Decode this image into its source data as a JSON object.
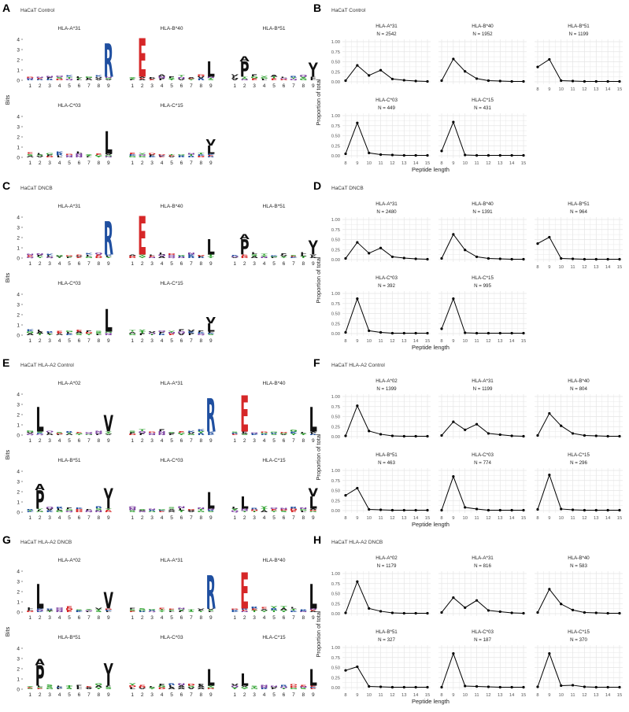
{
  "panels": [
    {
      "letter": "A",
      "title": "HaCaT Control"
    },
    {
      "letter": "B",
      "title": "HaCaT Control"
    },
    {
      "letter": "C",
      "title": "HaCaT DNCB"
    },
    {
      "letter": "D",
      "title": "HaCaT DNCB"
    },
    {
      "letter": "E",
      "title": "HaCaT HLA-A2 Control"
    },
    {
      "letter": "F",
      "title": "HaCaT HLA-A2 Control"
    },
    {
      "letter": "G",
      "title": "HaCaT HLA-A2 DNCB"
    },
    {
      "letter": "H",
      "title": "HaCaT HLA-A2 DNCB"
    }
  ],
  "logo_axis": {
    "ylabel": "Bits",
    "yticks": [
      0,
      1,
      2,
      3,
      4
    ],
    "xticks": [
      1,
      2,
      3,
      4,
      5,
      6,
      7,
      8,
      9
    ]
  },
  "line_axis": {
    "ylabel": "Proportion of total",
    "xlabel": "Peptide length",
    "yticks": [
      "0.00",
      "0.25",
      "0.50",
      "0.75",
      "1.00"
    ],
    "xticks": [
      8,
      9,
      10,
      11,
      12,
      13,
      14,
      15
    ]
  },
  "colors": {
    "acidic": "#d62728",
    "basic": "#1f4fa0",
    "hydrophobic": "#111111",
    "polar": "#2ca02c",
    "neutral": "#7b3fa0",
    "line": "#000000",
    "grid": "#e5e5e5"
  },
  "logos": [
    {
      "panel": "A",
      "row": 0,
      "col": 0,
      "allele": "HLA-A*31",
      "big": [
        {
          "pos": 9,
          "letter": "R",
          "bits": 3.3
        }
      ]
    },
    {
      "panel": "A",
      "row": 0,
      "col": 1,
      "allele": "HLA-B*40",
      "big": [
        {
          "pos": 2,
          "letter": "E",
          "bits": 3.8
        },
        {
          "pos": 9,
          "letter": "L",
          "bits": 1.5
        }
      ]
    },
    {
      "panel": "A",
      "row": 0,
      "col": 2,
      "allele": "HLA-B*51",
      "big": [
        {
          "pos": 2,
          "letter": "P",
          "bits": 1.5
        },
        {
          "pos": 2,
          "letter": "A",
          "bits": 0.5
        },
        {
          "pos": 9,
          "letter": "I",
          "bits": 0.7
        },
        {
          "pos": 9,
          "letter": "V",
          "bits": 0.7
        }
      ]
    },
    {
      "panel": "A",
      "row": 1,
      "col": 0,
      "allele": "HLA-C*03",
      "big": [
        {
          "pos": 9,
          "letter": "L",
          "bits": 2.2
        }
      ]
    },
    {
      "panel": "A",
      "row": 1,
      "col": 1,
      "allele": "HLA-C*15",
      "big": [
        {
          "pos": 9,
          "letter": "L",
          "bits": 0.8
        },
        {
          "pos": 9,
          "letter": "V",
          "bits": 0.6
        }
      ]
    },
    {
      "panel": "C",
      "row": 0,
      "col": 0,
      "allele": "HLA-A*31",
      "big": [
        {
          "pos": 9,
          "letter": "R",
          "bits": 3.3
        }
      ]
    },
    {
      "panel": "C",
      "row": 0,
      "col": 1,
      "allele": "HLA-B*40",
      "big": [
        {
          "pos": 2,
          "letter": "E",
          "bits": 3.8
        },
        {
          "pos": 9,
          "letter": "L",
          "bits": 1.5
        }
      ]
    },
    {
      "panel": "C",
      "row": 0,
      "col": 2,
      "allele": "HLA-B*51",
      "big": [
        {
          "pos": 2,
          "letter": "P",
          "bits": 1.5
        },
        {
          "pos": 2,
          "letter": "A",
          "bits": 0.5
        },
        {
          "pos": 9,
          "letter": "I",
          "bits": 0.7
        },
        {
          "pos": 9,
          "letter": "V",
          "bits": 0.7
        }
      ]
    },
    {
      "panel": "C",
      "row": 1,
      "col": 0,
      "allele": "HLA-C*03",
      "big": [
        {
          "pos": 9,
          "letter": "L",
          "bits": 2.2
        }
      ]
    },
    {
      "panel": "C",
      "row": 1,
      "col": 1,
      "allele": "HLA-C*15",
      "big": [
        {
          "pos": 9,
          "letter": "L",
          "bits": 0.8
        },
        {
          "pos": 9,
          "letter": "V",
          "bits": 0.6
        }
      ]
    },
    {
      "panel": "E",
      "row": 0,
      "col": 0,
      "allele": "HLA-A*02",
      "big": [
        {
          "pos": 2,
          "letter": "L",
          "bits": 2.4
        },
        {
          "pos": 9,
          "letter": "V",
          "bits": 1.6
        }
      ]
    },
    {
      "panel": "E",
      "row": 0,
      "col": 1,
      "allele": "HLA-A*31",
      "big": [
        {
          "pos": 9,
          "letter": "R",
          "bits": 3.3
        }
      ]
    },
    {
      "panel": "E",
      "row": 0,
      "col": 2,
      "allele": "HLA-B*40",
      "big": [
        {
          "pos": 2,
          "letter": "E",
          "bits": 3.6
        },
        {
          "pos": 9,
          "letter": "L",
          "bits": 2.4
        }
      ]
    },
    {
      "panel": "E",
      "row": 1,
      "col": 0,
      "allele": "HLA-B*51",
      "big": [
        {
          "pos": 2,
          "letter": "P",
          "bits": 1.8
        },
        {
          "pos": 2,
          "letter": "A",
          "bits": 0.6
        },
        {
          "pos": 9,
          "letter": "I",
          "bits": 1.0
        },
        {
          "pos": 9,
          "letter": "V",
          "bits": 1.0
        }
      ]
    },
    {
      "panel": "E",
      "row": 1,
      "col": 1,
      "allele": "HLA-C*03",
      "big": [
        {
          "pos": 9,
          "letter": "L",
          "bits": 1.6
        }
      ]
    },
    {
      "panel": "E",
      "row": 1,
      "col": 2,
      "allele": "HLA-C*15",
      "big": [
        {
          "pos": 2,
          "letter": "L",
          "bits": 1.2
        },
        {
          "pos": 9,
          "letter": "L",
          "bits": 1.2
        },
        {
          "pos": 9,
          "letter": "V",
          "bits": 0.8
        }
      ]
    },
    {
      "panel": "G",
      "row": 0,
      "col": 0,
      "allele": "HLA-A*02",
      "big": [
        {
          "pos": 2,
          "letter": "L",
          "bits": 2.4
        },
        {
          "pos": 9,
          "letter": "V",
          "bits": 1.6
        }
      ]
    },
    {
      "panel": "G",
      "row": 0,
      "col": 1,
      "allele": "HLA-A*31",
      "big": [
        {
          "pos": 9,
          "letter": "R",
          "bits": 3.3
        }
      ]
    },
    {
      "panel": "G",
      "row": 0,
      "col": 2,
      "allele": "HLA-B*40",
      "big": [
        {
          "pos": 2,
          "letter": "E",
          "bits": 3.6
        },
        {
          "pos": 9,
          "letter": "L",
          "bits": 2.4
        }
      ]
    },
    {
      "panel": "G",
      "row": 1,
      "col": 0,
      "allele": "HLA-B*51",
      "big": [
        {
          "pos": 2,
          "letter": "P",
          "bits": 2.0
        },
        {
          "pos": 2,
          "letter": "A",
          "bits": 0.6
        },
        {
          "pos": 9,
          "letter": "I",
          "bits": 1.2
        },
        {
          "pos": 9,
          "letter": "V",
          "bits": 1.0
        }
      ]
    },
    {
      "panel": "G",
      "row": 1,
      "col": 1,
      "allele": "HLA-C*03",
      "big": [
        {
          "pos": 9,
          "letter": "L",
          "bits": 1.6
        }
      ]
    },
    {
      "panel": "G",
      "row": 1,
      "col": 2,
      "allele": "HLA-C*15",
      "big": [
        {
          "pos": 2,
          "letter": "L",
          "bits": 1.2
        },
        {
          "pos": 9,
          "letter": "L",
          "bits": 1.6
        }
      ]
    }
  ],
  "chart_data": [
    {
      "type": "line",
      "panel": "B",
      "x": [
        8,
        9,
        10,
        11,
        12,
        13,
        14,
        15
      ],
      "ylim": [
        0,
        1
      ],
      "facets": [
        {
          "name": "HLA-A*31",
          "n": "N = 2542",
          "values": [
            0.03,
            0.41,
            0.16,
            0.29,
            0.07,
            0.04,
            0.02,
            0.01
          ]
        },
        {
          "name": "HLA-B*40",
          "n": "N = 1952",
          "values": [
            0.03,
            0.57,
            0.26,
            0.08,
            0.03,
            0.02,
            0.01,
            0.01
          ]
        },
        {
          "name": "HLA-B*51",
          "n": "N = 1199",
          "values": [
            0.37,
            0.56,
            0.03,
            0.02,
            0.01,
            0.01,
            0.01,
            0.01
          ]
        },
        {
          "name": "HLA-C*03",
          "n": "N = 449",
          "values": [
            0.05,
            0.82,
            0.07,
            0.03,
            0.02,
            0.01,
            0.01,
            0.01
          ]
        },
        {
          "name": "HLA-C*15",
          "n": "N = 431",
          "values": [
            0.12,
            0.84,
            0.02,
            0.01,
            0.01,
            0.01,
            0.01,
            0.01
          ]
        }
      ]
    },
    {
      "type": "line",
      "panel": "D",
      "x": [
        8,
        9,
        10,
        11,
        12,
        13,
        14,
        15
      ],
      "ylim": [
        0,
        1
      ],
      "facets": [
        {
          "name": "HLA-A*31",
          "n": "N = 2480",
          "values": [
            0.03,
            0.43,
            0.16,
            0.29,
            0.07,
            0.04,
            0.02,
            0.01
          ]
        },
        {
          "name": "HLA-B*40",
          "n": "N = 1391",
          "values": [
            0.03,
            0.63,
            0.24,
            0.07,
            0.03,
            0.02,
            0.01,
            0.01
          ]
        },
        {
          "name": "HLA-B*51",
          "n": "N = 964",
          "values": [
            0.4,
            0.56,
            0.03,
            0.02,
            0.01,
            0.01,
            0.01,
            0.01
          ]
        },
        {
          "name": "HLA-C*03",
          "n": "N = 392",
          "values": [
            0.03,
            0.87,
            0.07,
            0.03,
            0.01,
            0.01,
            0.01,
            0.01
          ]
        },
        {
          "name": "HLA-C*15",
          "n": "N = 995",
          "values": [
            0.12,
            0.87,
            0.02,
            0.01,
            0.01,
            0.01,
            0.01,
            0.01
          ]
        }
      ]
    },
    {
      "type": "line",
      "panel": "F",
      "x": [
        8,
        9,
        10,
        11,
        12,
        13,
        14,
        15
      ],
      "ylim": [
        0,
        1
      ],
      "facets": [
        {
          "name": "HLA-A*02",
          "n": "N = 1399",
          "values": [
            0.02,
            0.77,
            0.14,
            0.06,
            0.02,
            0.01,
            0.01,
            0.01
          ]
        },
        {
          "name": "HLA-A*31",
          "n": "N = 1199",
          "values": [
            0.03,
            0.37,
            0.17,
            0.31,
            0.08,
            0.05,
            0.02,
            0.01
          ]
        },
        {
          "name": "HLA-B*40",
          "n": "N = 804",
          "values": [
            0.03,
            0.58,
            0.27,
            0.08,
            0.03,
            0.02,
            0.01,
            0.01
          ]
        },
        {
          "name": "HLA-B*51",
          "n": "N = 463",
          "values": [
            0.38,
            0.56,
            0.03,
            0.02,
            0.01,
            0.01,
            0.01,
            0.01
          ]
        },
        {
          "name": "HLA-C*03",
          "n": "N = 774",
          "values": [
            0.01,
            0.85,
            0.08,
            0.04,
            0.01,
            0.01,
            0.01,
            0.01
          ]
        },
        {
          "name": "HLA-C*15",
          "n": "N = 296",
          "values": [
            0.03,
            0.89,
            0.04,
            0.02,
            0.01,
            0.01,
            0.01,
            0.01
          ]
        }
      ]
    },
    {
      "type": "line",
      "panel": "H",
      "x": [
        8,
        9,
        10,
        11,
        12,
        13,
        14,
        15
      ],
      "ylim": [
        0,
        1
      ],
      "facets": [
        {
          "name": "HLA-A*02",
          "n": "N = 1179",
          "values": [
            0.02,
            0.8,
            0.13,
            0.06,
            0.02,
            0.01,
            0.01,
            0.01
          ]
        },
        {
          "name": "HLA-A*31",
          "n": "N = 816",
          "values": [
            0.03,
            0.4,
            0.15,
            0.33,
            0.08,
            0.05,
            0.02,
            0.01
          ]
        },
        {
          "name": "HLA-B*40",
          "n": "N = 583",
          "values": [
            0.03,
            0.61,
            0.24,
            0.09,
            0.03,
            0.02,
            0.01,
            0.01
          ]
        },
        {
          "name": "HLA-B*51",
          "n": "N = 327",
          "values": [
            0.43,
            0.52,
            0.03,
            0.02,
            0.01,
            0.01,
            0.01,
            0.01
          ]
        },
        {
          "name": "HLA-C*03",
          "n": "N = 187",
          "values": [
            0.01,
            0.85,
            0.04,
            0.03,
            0.02,
            0.01,
            0.01,
            0.01
          ]
        },
        {
          "name": "HLA-C*15",
          "n": "N = 370",
          "values": [
            0.02,
            0.85,
            0.05,
            0.06,
            0.02,
            0.01,
            0.01,
            0.01
          ]
        }
      ]
    }
  ]
}
